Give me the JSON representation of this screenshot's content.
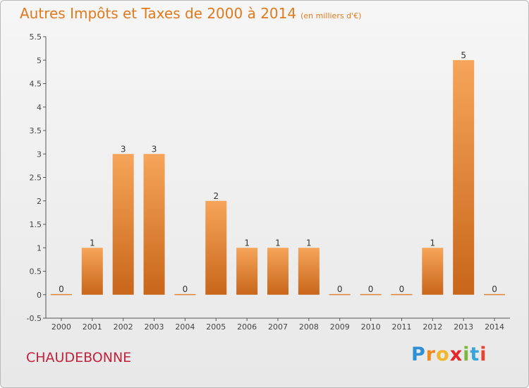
{
  "title": "Autres Impôts et Taxes de 2000 à 2014",
  "subtitle": "(en milliers d'€)",
  "commune": "CHAUDEBONNE",
  "logo": {
    "letters": [
      "P",
      "r",
      "o",
      "x",
      "i",
      "t",
      "i"
    ],
    "colors": [
      "#2f8fd6",
      "#f08a1c",
      "#f2b62a",
      "#e4262b",
      "#7ab83a",
      "#39a4d9",
      "#e8432f"
    ]
  },
  "colors": {
    "bar_light": "#f6a55a",
    "bar_dark": "#c8661a",
    "title": "#e07a1c",
    "commune": "#c0233c",
    "grid": "#d0d0d0"
  },
  "chart_data": {
    "type": "bar",
    "title": "Autres Impôts et Taxes de 2000 à 2014",
    "subtitle": "(en milliers d'€)",
    "categories": [
      "2000",
      "2001",
      "2002",
      "2003",
      "2004",
      "2005",
      "2006",
      "2007",
      "2008",
      "2009",
      "2010",
      "2011",
      "2012",
      "2013",
      "2014"
    ],
    "values": [
      0,
      1,
      3,
      3,
      0,
      2,
      1,
      1,
      1,
      0,
      0,
      0,
      1,
      5,
      0
    ],
    "data_labels": [
      "0",
      "1",
      "3",
      "3",
      "0",
      "2",
      "1",
      "1",
      "1",
      "0",
      "0",
      "0",
      "1",
      "5",
      "0"
    ],
    "yticks": [
      "-0.5",
      "0",
      "0.5",
      "1",
      "1.5",
      "2",
      "2.5",
      "3",
      "3.5",
      "4",
      "4.5",
      "5",
      "5.5"
    ],
    "ylim": [
      -0.5,
      5.5
    ],
    "grid": false,
    "legend": "none"
  }
}
